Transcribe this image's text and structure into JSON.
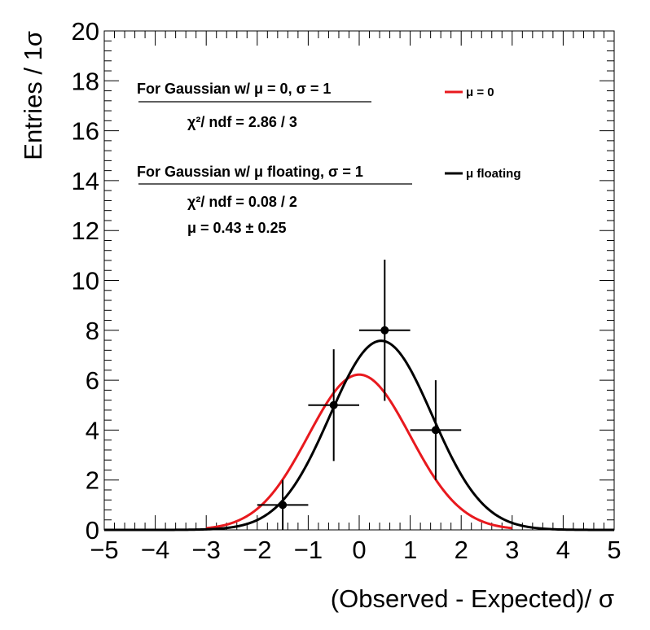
{
  "chart_data": {
    "type": "scatter",
    "xlabel": "(Observed - Expected)/ σ",
    "ylabel": "Entries / 1σ",
    "xlim": [
      -5,
      5
    ],
    "ylim": [
      0,
      20
    ],
    "x_ticks": [
      -5,
      -4,
      -3,
      -2,
      -1,
      0,
      1,
      2,
      3,
      4,
      5
    ],
    "y_ticks": [
      0,
      2,
      4,
      6,
      8,
      10,
      12,
      14,
      16,
      18,
      20
    ],
    "x_tick_labels": [
      "−5",
      "−4",
      "−3",
      "−2",
      "−1",
      "0",
      "1",
      "2",
      "3",
      "4",
      "5"
    ],
    "y_tick_labels": [
      "0",
      "2",
      "4",
      "6",
      "8",
      "10",
      "12",
      "14",
      "16",
      "18",
      "20"
    ],
    "grid": false,
    "points": [
      {
        "x": -1.5,
        "y": 1,
        "xerr": 0.5,
        "yerr": 1.0
      },
      {
        "x": -0.5,
        "y": 5,
        "xerr": 0.5,
        "yerr": 2.24
      },
      {
        "x": 0.5,
        "y": 8,
        "xerr": 0.5,
        "yerr": 2.83
      },
      {
        "x": 1.5,
        "y": 4,
        "xerr": 0.5,
        "yerr": 2.0
      }
    ],
    "curves": [
      {
        "name": "μ = 0",
        "color": "#e8191e",
        "mu": 0,
        "sigma": 1,
        "norm": 15.6,
        "x_range": [
          -3,
          3
        ]
      },
      {
        "name": "μ floating",
        "color": "#000000",
        "mu": 0.43,
        "sigma": 1,
        "norm": 19.0,
        "x_range": [
          -5,
          5
        ]
      }
    ],
    "annotations": [
      {
        "text": "For Gaussian w/ μ = 0, σ = 1",
        "underlined": true
      },
      {
        "text": "χ²/ ndf = 2.86 / 3",
        "underlined": false
      },
      {
        "text": "For Gaussian w/ μ floating, σ = 1",
        "underlined": true
      },
      {
        "text": "χ²/ ndf = 0.08 / 2",
        "underlined": false
      },
      {
        "text": "μ = 0.43 ± 0.25",
        "underlined": false
      }
    ],
    "legend_position": "top-right"
  }
}
